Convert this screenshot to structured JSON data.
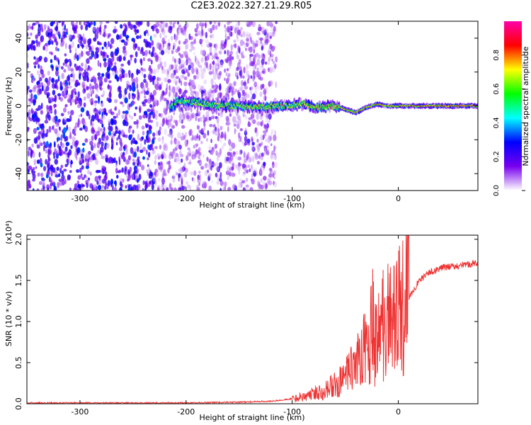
{
  "title": "C2E3.2022.327.21.29.R05",
  "colors": {
    "snr_line": "#ee3333",
    "frame": "#000000"
  },
  "chart_data": [
    {
      "type": "heatmap",
      "xlabel": "Height of straight line (km)",
      "ylabel": "Frequency (Hz)",
      "xlim": [
        -350,
        75
      ],
      "ylim": [
        -50,
        50
      ],
      "x_ticks": [
        -300,
        -200,
        -100,
        0
      ],
      "y_ticks": [
        -40,
        -20,
        0,
        20,
        40
      ],
      "colorbar": {
        "label": "Normalized spectral amplitude",
        "range": [
          0,
          1
        ],
        "ticks": [
          "0.0",
          "0.2",
          "0.4",
          "0.6",
          "0.8"
        ],
        "tick_values": [
          0,
          0.2,
          0.4,
          0.6,
          0.8
        ],
        "colormap": [
          "#ffffff",
          "#7700ee",
          "#0000ff",
          "#00ffff",
          "#00ff00",
          "#ffff00",
          "#ff0000",
          "#ff00aa"
        ]
      },
      "signal_track": {
        "x": [
          -210,
          -190,
          -170,
          -150,
          -130,
          -110,
          -90,
          -75,
          -60,
          -50,
          -40,
          -30,
          -20,
          -10,
          0,
          20,
          40,
          60,
          75
        ],
        "y": [
          3,
          2,
          0,
          0,
          -1,
          0,
          1,
          -1,
          0,
          -2,
          -4,
          -1,
          1,
          0,
          0,
          0,
          0,
          0,
          0
        ]
      }
    },
    {
      "type": "line",
      "xlabel": "Height of straight line (km)",
      "ylabel": "SNR (10 * v/v)",
      "y_scale_label": "(x10⁴)",
      "xlim": [
        -350,
        75
      ],
      "ylim": [
        0,
        2.05
      ],
      "x_ticks": [
        -300,
        -200,
        -100,
        0
      ],
      "y_ticks": [
        "0.0",
        "0.5",
        "1.0",
        "1.5",
        "2.0"
      ],
      "y_tick_values": [
        0,
        0.5,
        1.0,
        1.5,
        2.0
      ],
      "series": [
        {
          "x": [
            -350,
            -300,
            -250,
            -200,
            -150,
            -120,
            -100,
            -80,
            -60,
            -50,
            -40,
            -30,
            -25,
            -20,
            -15,
            -10,
            -5,
            0,
            5,
            10,
            20,
            30,
            40,
            50,
            60,
            70,
            75
          ],
          "values": [
            0.01,
            0.01,
            0.01,
            0.01,
            0.02,
            0.03,
            0.06,
            0.12,
            0.22,
            0.3,
            0.5,
            0.7,
            0.9,
            0.75,
            0.9,
            1.0,
            0.95,
            1.1,
            1.2,
            1.3,
            1.5,
            1.6,
            1.65,
            1.67,
            1.68,
            1.7,
            1.72
          ]
        }
      ]
    }
  ]
}
